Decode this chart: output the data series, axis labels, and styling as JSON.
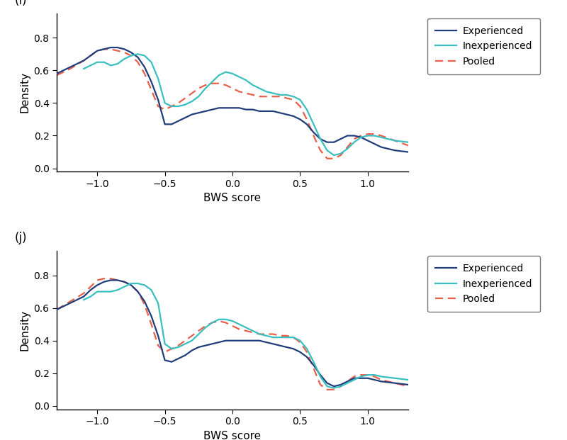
{
  "panel_labels": [
    "(i)",
    "(j)"
  ],
  "xlabel": "BWS score",
  "ylabel": "Density",
  "xlim": [
    -1.3,
    1.3
  ],
  "ylim": [
    -0.02,
    0.95
  ],
  "yticks": [
    0.0,
    0.2,
    0.4,
    0.6,
    0.8
  ],
  "xticks": [
    -1.0,
    -0.5,
    0.0,
    0.5,
    1.0
  ],
  "legend_labels": [
    "Experienced",
    "Inexperienced",
    "Pooled"
  ],
  "colors": {
    "experienced": "#1f3d7a",
    "inexperienced": "#3abfbf",
    "pooled": "#e8604a"
  },
  "panel_i": {
    "experienced": {
      "x": [
        -1.3,
        -1.2,
        -1.1,
        -1.05,
        -1.0,
        -0.95,
        -0.9,
        -0.85,
        -0.8,
        -0.75,
        -0.7,
        -0.65,
        -0.6,
        -0.55,
        -0.5,
        -0.45,
        -0.4,
        -0.35,
        -0.3,
        -0.25,
        -0.2,
        -0.15,
        -0.1,
        -0.05,
        0.0,
        0.05,
        0.1,
        0.15,
        0.2,
        0.25,
        0.3,
        0.35,
        0.4,
        0.45,
        0.5,
        0.55,
        0.6,
        0.65,
        0.7,
        0.75,
        0.8,
        0.85,
        0.9,
        0.95,
        1.0,
        1.05,
        1.1,
        1.2,
        1.3
      ],
      "y": [
        0.58,
        0.62,
        0.66,
        0.69,
        0.72,
        0.73,
        0.74,
        0.74,
        0.73,
        0.71,
        0.68,
        0.62,
        0.53,
        0.42,
        0.27,
        0.27,
        0.29,
        0.31,
        0.33,
        0.34,
        0.35,
        0.36,
        0.37,
        0.37,
        0.37,
        0.37,
        0.36,
        0.36,
        0.35,
        0.35,
        0.35,
        0.34,
        0.33,
        0.32,
        0.3,
        0.27,
        0.22,
        0.18,
        0.16,
        0.16,
        0.18,
        0.2,
        0.2,
        0.19,
        0.17,
        0.15,
        0.13,
        0.11,
        0.1
      ]
    },
    "inexperienced": {
      "x": [
        -1.1,
        -1.05,
        -1.0,
        -0.95,
        -0.9,
        -0.85,
        -0.8,
        -0.75,
        -0.7,
        -0.65,
        -0.6,
        -0.55,
        -0.5,
        -0.45,
        -0.4,
        -0.35,
        -0.3,
        -0.25,
        -0.2,
        -0.15,
        -0.1,
        -0.05,
        0.0,
        0.05,
        0.1,
        0.15,
        0.2,
        0.25,
        0.3,
        0.35,
        0.4,
        0.45,
        0.5,
        0.55,
        0.6,
        0.65,
        0.7,
        0.75,
        0.8,
        0.85,
        0.9,
        0.95,
        1.0,
        1.05,
        1.1,
        1.2,
        1.3
      ],
      "y": [
        0.61,
        0.63,
        0.65,
        0.65,
        0.63,
        0.64,
        0.67,
        0.69,
        0.7,
        0.69,
        0.65,
        0.55,
        0.4,
        0.38,
        0.38,
        0.39,
        0.41,
        0.44,
        0.49,
        0.53,
        0.57,
        0.59,
        0.58,
        0.56,
        0.54,
        0.51,
        0.49,
        0.47,
        0.46,
        0.45,
        0.45,
        0.44,
        0.42,
        0.36,
        0.27,
        0.18,
        0.11,
        0.08,
        0.09,
        0.12,
        0.16,
        0.19,
        0.2,
        0.2,
        0.19,
        0.17,
        0.16
      ]
    },
    "pooled": {
      "x": [
        -1.3,
        -1.2,
        -1.1,
        -1.05,
        -1.0,
        -0.95,
        -0.9,
        -0.85,
        -0.8,
        -0.75,
        -0.7,
        -0.65,
        -0.6,
        -0.55,
        -0.5,
        -0.45,
        -0.4,
        -0.35,
        -0.3,
        -0.25,
        -0.2,
        -0.15,
        -0.1,
        -0.05,
        0.0,
        0.05,
        0.1,
        0.15,
        0.2,
        0.25,
        0.3,
        0.35,
        0.4,
        0.45,
        0.5,
        0.55,
        0.6,
        0.65,
        0.7,
        0.75,
        0.8,
        0.85,
        0.9,
        0.95,
        1.0,
        1.05,
        1.1,
        1.2,
        1.3
      ],
      "y": [
        0.57,
        0.61,
        0.66,
        0.69,
        0.72,
        0.73,
        0.73,
        0.72,
        0.71,
        0.69,
        0.65,
        0.58,
        0.48,
        0.38,
        0.36,
        0.38,
        0.4,
        0.43,
        0.46,
        0.49,
        0.51,
        0.52,
        0.52,
        0.51,
        0.49,
        0.47,
        0.46,
        0.45,
        0.44,
        0.44,
        0.44,
        0.44,
        0.43,
        0.42,
        0.38,
        0.3,
        0.2,
        0.11,
        0.06,
        0.06,
        0.08,
        0.13,
        0.18,
        0.2,
        0.21,
        0.21,
        0.2,
        0.17,
        0.14
      ]
    }
  },
  "panel_j": {
    "experienced": {
      "x": [
        -1.3,
        -1.2,
        -1.1,
        -1.05,
        -1.0,
        -0.95,
        -0.9,
        -0.85,
        -0.8,
        -0.75,
        -0.7,
        -0.65,
        -0.6,
        -0.55,
        -0.5,
        -0.45,
        -0.4,
        -0.35,
        -0.3,
        -0.25,
        -0.2,
        -0.15,
        -0.1,
        -0.05,
        0.0,
        0.05,
        0.1,
        0.15,
        0.2,
        0.25,
        0.3,
        0.35,
        0.4,
        0.45,
        0.5,
        0.55,
        0.6,
        0.65,
        0.7,
        0.75,
        0.8,
        0.85,
        0.9,
        0.95,
        1.0,
        1.05,
        1.1,
        1.2,
        1.3
      ],
      "y": [
        0.59,
        0.63,
        0.67,
        0.71,
        0.74,
        0.76,
        0.77,
        0.77,
        0.76,
        0.74,
        0.7,
        0.64,
        0.55,
        0.43,
        0.28,
        0.27,
        0.29,
        0.31,
        0.34,
        0.36,
        0.37,
        0.38,
        0.39,
        0.4,
        0.4,
        0.4,
        0.4,
        0.4,
        0.4,
        0.39,
        0.38,
        0.37,
        0.36,
        0.35,
        0.33,
        0.3,
        0.25,
        0.19,
        0.14,
        0.12,
        0.13,
        0.15,
        0.17,
        0.17,
        0.17,
        0.16,
        0.15,
        0.14,
        0.13
      ]
    },
    "inexperienced": {
      "x": [
        -1.1,
        -1.05,
        -1.0,
        -0.95,
        -0.9,
        -0.85,
        -0.8,
        -0.75,
        -0.7,
        -0.65,
        -0.6,
        -0.55,
        -0.5,
        -0.45,
        -0.4,
        -0.35,
        -0.3,
        -0.25,
        -0.2,
        -0.15,
        -0.1,
        -0.05,
        0.0,
        0.05,
        0.1,
        0.15,
        0.2,
        0.25,
        0.3,
        0.35,
        0.4,
        0.45,
        0.5,
        0.55,
        0.6,
        0.65,
        0.7,
        0.75,
        0.8,
        0.85,
        0.9,
        0.95,
        1.0,
        1.05,
        1.1,
        1.2,
        1.3
      ],
      "y": [
        0.65,
        0.67,
        0.7,
        0.7,
        0.7,
        0.71,
        0.73,
        0.75,
        0.75,
        0.74,
        0.71,
        0.63,
        0.38,
        0.35,
        0.36,
        0.38,
        0.4,
        0.44,
        0.48,
        0.51,
        0.53,
        0.53,
        0.52,
        0.5,
        0.48,
        0.46,
        0.44,
        0.43,
        0.42,
        0.42,
        0.42,
        0.42,
        0.4,
        0.35,
        0.27,
        0.18,
        0.12,
        0.11,
        0.12,
        0.14,
        0.16,
        0.18,
        0.19,
        0.19,
        0.18,
        0.17,
        0.16
      ]
    },
    "pooled": {
      "x": [
        -1.3,
        -1.2,
        -1.1,
        -1.05,
        -1.0,
        -0.95,
        -0.9,
        -0.85,
        -0.8,
        -0.75,
        -0.7,
        -0.65,
        -0.6,
        -0.55,
        -0.5,
        -0.45,
        -0.4,
        -0.35,
        -0.3,
        -0.25,
        -0.2,
        -0.15,
        -0.1,
        -0.05,
        0.0,
        0.05,
        0.1,
        0.15,
        0.2,
        0.25,
        0.3,
        0.35,
        0.4,
        0.45,
        0.5,
        0.55,
        0.6,
        0.65,
        0.7,
        0.75,
        0.8,
        0.85,
        0.9,
        0.95,
        1.0,
        1.05,
        1.1,
        1.2,
        1.3
      ],
      "y": [
        0.59,
        0.64,
        0.69,
        0.73,
        0.77,
        0.78,
        0.78,
        0.77,
        0.76,
        0.74,
        0.7,
        0.62,
        0.5,
        0.37,
        0.33,
        0.35,
        0.37,
        0.4,
        0.43,
        0.46,
        0.49,
        0.51,
        0.52,
        0.51,
        0.49,
        0.47,
        0.46,
        0.45,
        0.44,
        0.44,
        0.44,
        0.43,
        0.43,
        0.42,
        0.39,
        0.33,
        0.23,
        0.13,
        0.1,
        0.1,
        0.12,
        0.15,
        0.18,
        0.19,
        0.19,
        0.18,
        0.16,
        0.14,
        0.12
      ]
    }
  },
  "background_color": "#ffffff",
  "spine_color": "#000000",
  "tick_color": "#000000",
  "label_fontsize": 11,
  "panel_label_fontsize": 12,
  "legend_fontsize": 10,
  "linewidth": 1.6
}
